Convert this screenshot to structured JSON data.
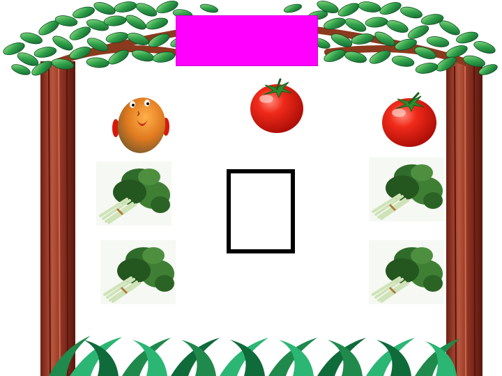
{
  "colors": {
    "title_box": "#ff00ff",
    "answer_box_border": "#000000",
    "trunk": "#8b2f20",
    "leaves": "#2ea043",
    "grass": "#1f8a4c"
  },
  "items": {
    "left_column": [
      "potato-icon",
      "spinach-icon",
      "spinach-icon"
    ],
    "middle_column": [
      "tomato-icon",
      "empty-answer-box"
    ],
    "right_column": [
      "tomato-icon",
      "spinach-icon",
      "spinach-icon"
    ]
  }
}
